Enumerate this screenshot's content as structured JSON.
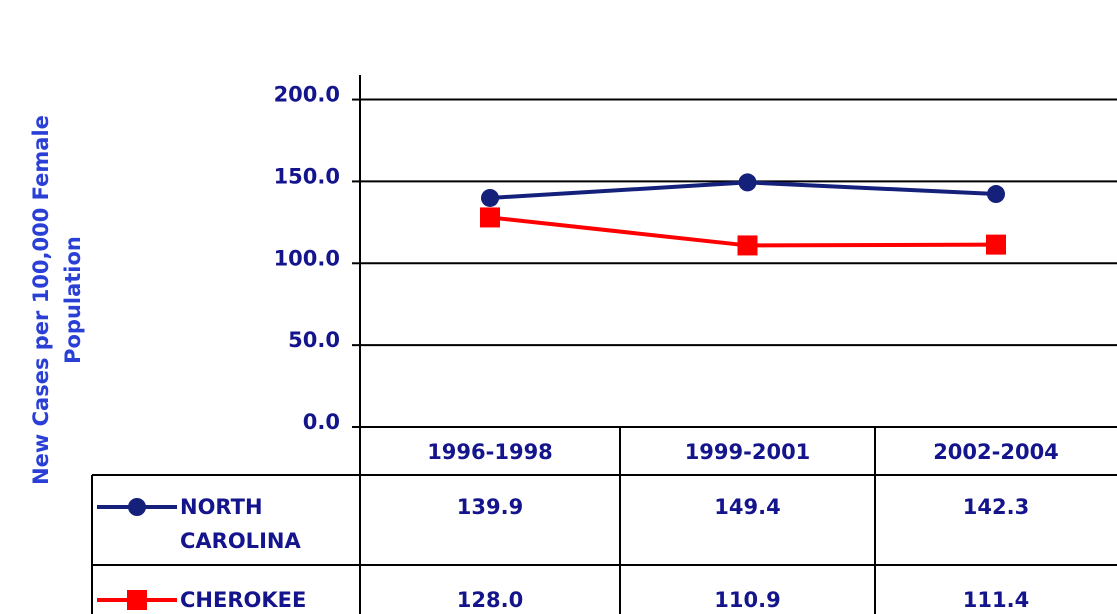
{
  "chart_data": {
    "type": "line",
    "y_label": "New Cases per 100,000 Female Population",
    "categories": [
      "1996-1998",
      "1999-2001",
      "2002-2004"
    ],
    "series": [
      {
        "name": "NORTH CAROLINA",
        "color": "#14207a",
        "marker": "circle",
        "values": [
          139.9,
          149.4,
          142.3
        ]
      },
      {
        "name": "CHEROKEE",
        "color": "#ff0000",
        "marker": "square",
        "values": [
          128.0,
          110.9,
          111.4
        ],
        "value_labels": [
          "128.0",
          "110.9",
          "111.4"
        ]
      }
    ],
    "ylim": [
      0,
      215
    ],
    "yticks": [
      {
        "value": 0,
        "label": "0.0"
      },
      {
        "value": 50,
        "label": "50.0"
      },
      {
        "value": 100,
        "label": "100.0"
      },
      {
        "value": 150,
        "label": "150.0"
      },
      {
        "value": 200,
        "label": "200.0"
      }
    ],
    "grid": true
  }
}
